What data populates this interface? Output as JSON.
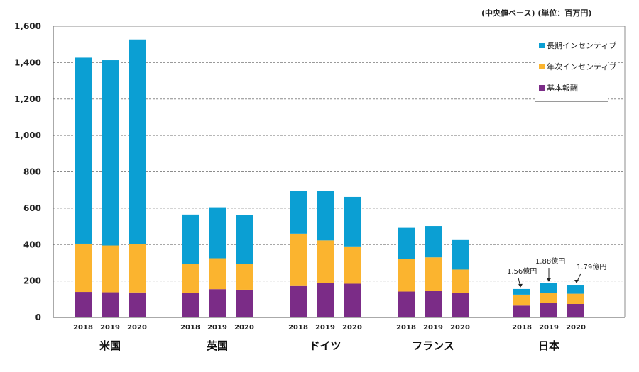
{
  "chart_data": {
    "type": "bar",
    "stacked": true,
    "unit_note": "(中央値ベース) (単位：百万円)",
    "ylim": [
      0,
      1600
    ],
    "yticks": [
      "0",
      "200",
      "400",
      "600",
      "800",
      "1,000",
      "1,200",
      "1,400",
      "1,600"
    ],
    "ytick_values": [
      0,
      200,
      400,
      600,
      800,
      1000,
      1200,
      1400,
      1600
    ],
    "grid": true,
    "legend_position": "top-right",
    "series_colors": {
      "base": "#7B2C87",
      "annual": "#FBB42F",
      "long": "#0B9FD3"
    },
    "legend": [
      {
        "key": "long",
        "label": "長期インセンティブ"
      },
      {
        "key": "annual",
        "label": "年次インセンティブ"
      },
      {
        "key": "base",
        "label": "基本報酬"
      }
    ],
    "groups": [
      {
        "name": "米国",
        "bars": [
          {
            "year": "2018",
            "base": 140,
            "annual": 265,
            "long": 1022
          },
          {
            "year": "2019",
            "base": 138,
            "annual": 257,
            "long": 1018
          },
          {
            "year": "2020",
            "base": 137,
            "annual": 265,
            "long": 1125
          }
        ]
      },
      {
        "name": "英国",
        "bars": [
          {
            "year": "2018",
            "base": 135,
            "annual": 160,
            "long": 270
          },
          {
            "year": "2019",
            "base": 155,
            "annual": 170,
            "long": 280
          },
          {
            "year": "2020",
            "base": 152,
            "annual": 140,
            "long": 270
          }
        ]
      },
      {
        "name": "ドイツ",
        "bars": [
          {
            "year": "2018",
            "base": 176,
            "annual": 284,
            "long": 233
          },
          {
            "year": "2019",
            "base": 188,
            "annual": 235,
            "long": 270
          },
          {
            "year": "2020",
            "base": 185,
            "annual": 205,
            "long": 272
          }
        ]
      },
      {
        "name": "フランス",
        "bars": [
          {
            "year": "2018",
            "base": 142,
            "annual": 178,
            "long": 172
          },
          {
            "year": "2019",
            "base": 148,
            "annual": 182,
            "long": 172
          },
          {
            "year": "2020",
            "base": 135,
            "annual": 128,
            "long": 162
          }
        ]
      },
      {
        "name": "日本",
        "bars": [
          {
            "year": "2018",
            "base": 65,
            "annual": 60,
            "long": 31
          },
          {
            "year": "2019",
            "base": 78,
            "annual": 57,
            "long": 53
          },
          {
            "year": "2020",
            "base": 74,
            "annual": 56,
            "long": 49
          }
        ]
      }
    ],
    "annotations": [
      {
        "text": "1.56億円",
        "group": 4,
        "bar": 0
      },
      {
        "text": "1.88億円",
        "group": 4,
        "bar": 1
      },
      {
        "text": "1.79億円",
        "group": 4,
        "bar": 2
      }
    ]
  }
}
